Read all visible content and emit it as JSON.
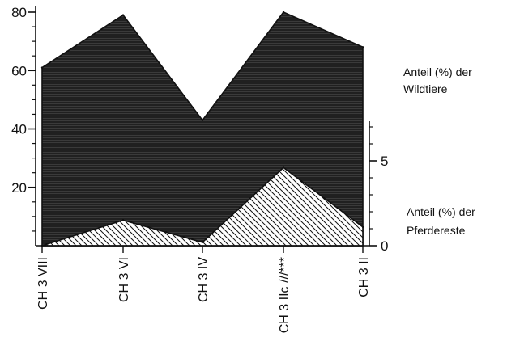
{
  "chart_data": {
    "type": "area",
    "categories": [
      "CH 3 VIII",
      "CH 3 VI",
      "CH 3 IV",
      "CH 3 IIc ///***",
      "CH 3 II"
    ],
    "left_axis": {
      "ylim": [
        0,
        80
      ],
      "ticks": [
        20,
        40,
        60,
        80
      ],
      "minor_step": 5
    },
    "right_axis": {
      "ylim": [
        0,
        8
      ],
      "ticks": [
        0,
        5
      ],
      "minor_step": 1
    },
    "series": [
      {
        "name": "Anteil (%) der Wildtiere",
        "axis": "left",
        "fill": "horizontal-hatch",
        "values": [
          61,
          79,
          43,
          80,
          68
        ]
      },
      {
        "name": "Anteil (%) der Pferdereste",
        "axis": "right",
        "fill": "diagonal-hatch",
        "values": [
          0,
          1.5,
          0.2,
          4.6,
          1.1
        ]
      }
    ],
    "annotations": [
      {
        "text": "Anteil (%) der",
        "series": 0,
        "line": 1
      },
      {
        "text": "Wildtiere",
        "series": 0,
        "line": 2
      },
      {
        "text": "Anteil (%) der",
        "series": 1,
        "line": 1
      },
      {
        "text": "Pferdereste",
        "series": 1,
        "line": 2
      }
    ],
    "legend": "right",
    "grid": false,
    "colors": {
      "ink": "#111111",
      "dark_fill": "#3a3a3a",
      "dark_lines": "#0e0e0e",
      "light_fill": "#ffffff"
    }
  }
}
